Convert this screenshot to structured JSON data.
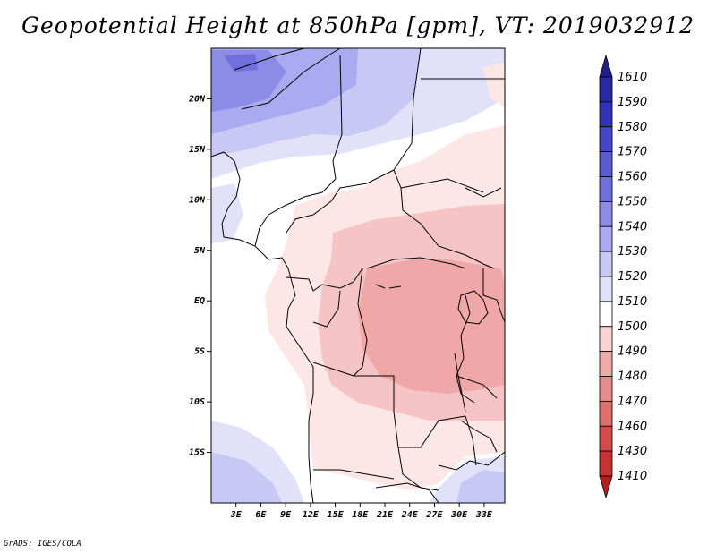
{
  "title": "Geopotential Height at 850hPa [gpm], VT: 2019032912",
  "footer": "GrADS: IGES/COLA",
  "map": {
    "lon_range": [
      0,
      35.5
    ],
    "lat_range": [
      -20,
      25
    ],
    "x_ticks": [
      {
        "value": 3,
        "label": "3E"
      },
      {
        "value": 6,
        "label": "6E"
      },
      {
        "value": 9,
        "label": "9E"
      },
      {
        "value": 12,
        "label": "12E"
      },
      {
        "value": 15,
        "label": "15E"
      },
      {
        "value": 18,
        "label": "18E"
      },
      {
        "value": 21,
        "label": "21E"
      },
      {
        "value": 24,
        "label": "24E"
      },
      {
        "value": 27,
        "label": "27E"
      },
      {
        "value": 30,
        "label": "30E"
      },
      {
        "value": 33,
        "label": "33E"
      }
    ],
    "y_ticks": [
      {
        "value": 20,
        "label": "20N"
      },
      {
        "value": 15,
        "label": "15N"
      },
      {
        "value": 10,
        "label": "10N"
      },
      {
        "value": 5,
        "label": "5N"
      },
      {
        "value": 0,
        "label": "EQ"
      },
      {
        "value": -5,
        "label": "5S"
      },
      {
        "value": -10,
        "label": "10S"
      },
      {
        "value": -15,
        "label": "15S"
      }
    ]
  },
  "colorbar": {
    "levels": [
      "1610",
      "1590",
      "1580",
      "1570",
      "1560",
      "1550",
      "1540",
      "1530",
      "1520",
      "1510",
      "1500",
      "1490",
      "1480",
      "1470",
      "1460",
      "1430",
      "1410"
    ],
    "colors": [
      "#1e1e8c",
      "#2828a0",
      "#3232b4",
      "#4646c8",
      "#5a5ad2",
      "#7070dc",
      "#8c8ce6",
      "#aaaaf0",
      "#c8c8f5",
      "#e1e1fa",
      "#ffffff",
      "#fad2d2",
      "#f0aaaa",
      "#e68c8c",
      "#dc6e6e",
      "#d24b4b",
      "#c83232",
      "#b41e1e"
    ]
  }
}
